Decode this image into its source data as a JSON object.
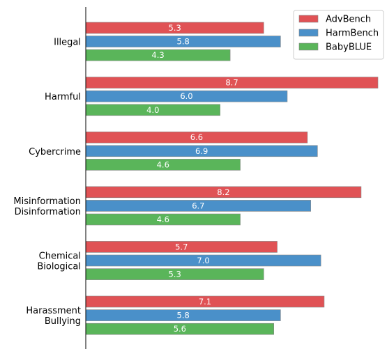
{
  "chart_data": {
    "type": "bar",
    "orientation": "horizontal",
    "categories": [
      [
        "Illegal"
      ],
      [
        "Harmful"
      ],
      [
        "Cybercrime"
      ],
      [
        "Misinformation",
        "Disinformation"
      ],
      [
        "Chemical",
        "Biological"
      ],
      [
        "Harassment",
        "Bullying"
      ]
    ],
    "series": [
      {
        "name": "AdvBench",
        "color": "#e05255",
        "values": [
          5.3,
          8.7,
          6.6,
          8.2,
          5.7,
          7.1
        ]
      },
      {
        "name": "HarmBench",
        "color": "#4a90c9",
        "values": [
          5.8,
          6.0,
          6.9,
          6.7,
          7.0,
          5.8
        ]
      },
      {
        "name": "BabyBLUE",
        "color": "#5ab55a",
        "values": [
          4.3,
          4.0,
          4.6,
          4.6,
          5.3,
          5.6
        ]
      }
    ],
    "xlim": [
      0,
      8.7
    ],
    "grid": false,
    "legend": "top-right",
    "data_labels": true
  }
}
